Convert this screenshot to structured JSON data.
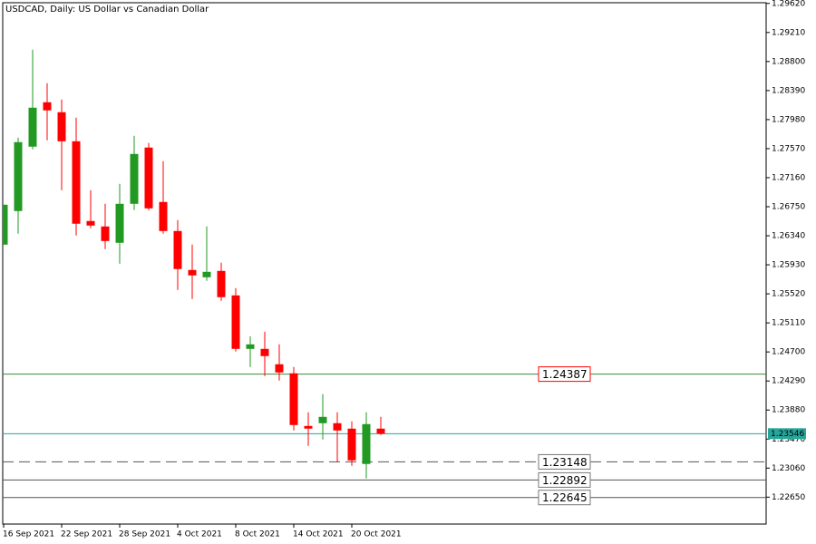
{
  "chart_data": {
    "type": "candlestick",
    "title": "USDCAD, Daily:  US Dollar vs Canadian Dollar",
    "categories": [
      "16 Sep 2021",
      null,
      null,
      null,
      "22 Sep 2021",
      null,
      null,
      null,
      "28 Sep 2021",
      null,
      null,
      null,
      "4 Oct 2021",
      null,
      null,
      null,
      "8 Oct 2021",
      null,
      null,
      null,
      "14 Oct 2021",
      null,
      null,
      null,
      "20 Oct 2021",
      null,
      null
    ],
    "open": [
      1.26215,
      1.26689,
      1.27598,
      1.28225,
      1.28084,
      1.27674,
      1.26548,
      1.26471,
      1.26241,
      1.26791,
      1.27585,
      1.26817,
      1.26407,
      1.25857,
      1.25754,
      1.25844,
      1.25498,
      1.24743,
      1.24743,
      1.24526,
      1.24398,
      1.23655,
      1.23694,
      1.23694,
      1.23617,
      1.23118,
      1.23617
    ],
    "high": [
      1.26778,
      1.27726,
      1.28967,
      1.28494,
      1.28263,
      1.28007,
      1.26983,
      1.26791,
      1.27073,
      1.27751,
      1.27649,
      1.27393,
      1.26561,
      1.26215,
      1.26471,
      1.25959,
      1.25601,
      1.24922,
      1.24986,
      1.24807,
      1.24487,
      1.23847,
      1.24103,
      1.23847,
      1.23719,
      1.23847,
      1.23783
    ],
    "low": [
      1.26215,
      1.26369,
      1.27559,
      1.27687,
      1.26983,
      1.26343,
      1.26446,
      1.26151,
      1.25946,
      1.26702,
      1.26702,
      1.26369,
      1.25575,
      1.25447,
      1.25703,
      1.25422,
      1.24705,
      1.24487,
      1.24359,
      1.24295,
      1.23591,
      1.23374,
      1.23463,
      1.23143,
      1.23092,
      1.22913,
      1.23527
    ],
    "close": [
      1.26778,
      1.27662,
      1.28148,
      1.2811,
      1.27674,
      1.2651,
      1.26484,
      1.26266,
      1.26791,
      1.27495,
      1.26727,
      1.26407,
      1.2587,
      1.2578,
      1.25831,
      1.25473,
      1.24743,
      1.24807,
      1.24641,
      1.2441,
      1.23668,
      1.23617,
      1.23783,
      1.23591,
      1.23169,
      1.23681,
      1.23546
    ],
    "up_color": "#229922",
    "down_color": "#ff0000",
    "ylim": [
      1.2227,
      1.2963
    ],
    "yticks": [
      {
        "value": 1.2962,
        "label": "1.29620"
      },
      {
        "value": 1.2921,
        "label": "1.29210"
      },
      {
        "value": 1.288,
        "label": "1.28800"
      },
      {
        "value": 1.2839,
        "label": "1.28390"
      },
      {
        "value": 1.2798,
        "label": "1.27980"
      },
      {
        "value": 1.2757,
        "label": "1.27570"
      },
      {
        "value": 1.2716,
        "label": "1.27160"
      },
      {
        "value": 1.2675,
        "label": "1.26750"
      },
      {
        "value": 1.2634,
        "label": "1.26340"
      },
      {
        "value": 1.2593,
        "label": "1.25930"
      },
      {
        "value": 1.2552,
        "label": "1.25520"
      },
      {
        "value": 1.2511,
        "label": "1.25110"
      },
      {
        "value": 1.247,
        "label": "1.24700"
      },
      {
        "value": 1.2429,
        "label": "1.24290"
      },
      {
        "value": 1.2388,
        "label": "1.23880"
      },
      {
        "value": 1.2347,
        "label": "1.23470"
      },
      {
        "value": 1.2306,
        "label": "1.23060"
      },
      {
        "value": 1.2265,
        "label": "1.22650"
      }
    ],
    "current_price": {
      "value": 1.23546,
      "color": "#26a69a"
    },
    "levels": [
      {
        "value": 1.24387,
        "line_color": "#3a8a3a",
        "text_color": "#ff0000",
        "dashed": false
      },
      {
        "value": 1.23148,
        "line_color": "#555555",
        "text_color": "#777777",
        "dashed": true
      },
      {
        "value": 1.22892,
        "line_color": "#555555",
        "text_color": "#777777",
        "dashed": false
      },
      {
        "value": 1.22645,
        "line_color": "#555555",
        "text_color": "#777777",
        "dashed": false
      }
    ]
  }
}
